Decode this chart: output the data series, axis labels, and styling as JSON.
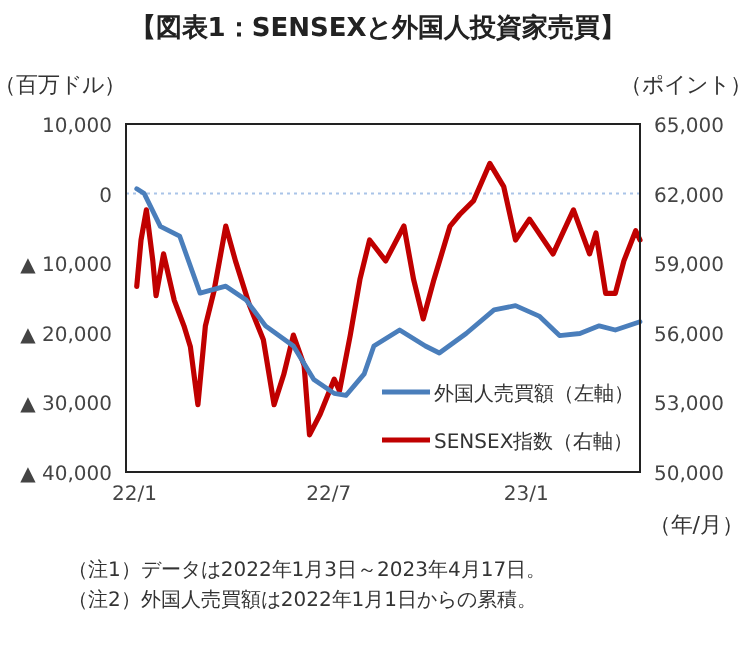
{
  "chart_data": {
    "type": "line",
    "title": "【図表1：SENSEXと外国人投資家売買】",
    "ylabel": "（百万ドル）",
    "y2label": "（ポイント）",
    "xlabel": "（年/月）",
    "annotations": [
      "（注1）データは2022年1月3日～2023年4月17日。",
      "（注2）外国人売買額は2022年1月1日からの累積。"
    ],
    "xlim": [
      "2021-12-24",
      "2023-04-17"
    ],
    "xticks": [
      {
        "value": "2022-01-01",
        "label": "22/1"
      },
      {
        "value": "2022-07-01",
        "label": "22/7"
      },
      {
        "value": "2023-01-01",
        "label": "23/1"
      }
    ],
    "ylim": [
      -40000,
      10000
    ],
    "yticks": [
      {
        "value": -40000,
        "label": "▲ 40,000"
      },
      {
        "value": -30000,
        "label": "▲ 30,000"
      },
      {
        "value": -20000,
        "label": "▲ 20,000"
      },
      {
        "value": -10000,
        "label": "▲ 10,000"
      },
      0,
      {
        "value": 10000,
        "label": "10,000"
      }
    ],
    "y2lim": [
      50000,
      65000
    ],
    "y2ticks": [
      {
        "value": 50000,
        "label": "50,000"
      },
      {
        "value": 53000,
        "label": "53,000"
      },
      {
        "value": 56000,
        "label": "56,000"
      },
      {
        "value": 59000,
        "label": "59,000"
      },
      {
        "value": 62000,
        "label": "62,000"
      },
      {
        "value": 65000,
        "label": "65,000"
      }
    ],
    "ref_lines": [
      {
        "axis": "y",
        "value": 0,
        "color": "#a9c4e8",
        "line_style": "dotted"
      }
    ],
    "legend": "bottom right",
    "series": [
      {
        "name": "外国人売買額（左軸）",
        "color": "#4a7ebb",
        "x": [
          "2022-01-03",
          "2022-01-10",
          "2022-01-25",
          "2022-02-12",
          "2022-03-03",
          "2022-03-27",
          "2022-04-15",
          "2022-05-03",
          "2022-05-29",
          "2022-06-17",
          "2022-07-06",
          "2022-07-17",
          "2022-08-03",
          "2022-08-12",
          "2022-09-05",
          "2022-09-29",
          "2022-10-12",
          "2022-11-06",
          "2022-12-02",
          "2022-12-22",
          "2023-01-13",
          "2023-02-01",
          "2023-02-20",
          "2023-03-10",
          "2023-03-25",
          "2023-04-17"
        ],
        "values": [
          700,
          0,
          -4700,
          -6100,
          -14300,
          -13300,
          -15300,
          -19000,
          -21900,
          -26700,
          -28700,
          -29000,
          -25900,
          -21900,
          -19600,
          -21900,
          -22900,
          -20100,
          -16700,
          -16100,
          -17600,
          -20400,
          -20100,
          -19000,
          -19600,
          -18400
        ]
      },
      {
        "name": "SENSEX指数（右軸）",
        "color": "#c00000",
        "axis": "y2",
        "x": [
          "2022-01-03",
          "2022-01-07",
          "2022-01-12",
          "2022-01-18",
          "2022-01-21",
          "2022-01-28",
          "2022-02-07",
          "2022-02-16",
          "2022-02-22",
          "2022-03-01",
          "2022-03-08",
          "2022-03-16",
          "2022-03-27",
          "2022-04-05",
          "2022-04-18",
          "2022-05-01",
          "2022-05-11",
          "2022-05-20",
          "2022-05-29",
          "2022-06-08",
          "2022-06-13",
          "2022-06-23",
          "2022-07-06",
          "2022-07-11",
          "2022-07-21",
          "2022-07-30",
          "2022-08-08",
          "2022-08-23",
          "2022-09-09",
          "2022-09-18",
          "2022-09-27",
          "2022-10-07",
          "2022-10-22",
          "2022-10-31",
          "2022-11-13",
          "2022-11-28",
          "2022-12-11",
          "2022-12-22",
          "2023-01-04",
          "2023-01-26",
          "2023-02-14",
          "2023-03-01",
          "2023-03-07",
          "2023-03-16",
          "2023-03-25",
          "2023-04-02",
          "2023-04-13",
          "2023-04-17"
        ],
        "values": [
          58000,
          60000,
          61300,
          59100,
          57600,
          59400,
          57400,
          56300,
          55400,
          52900,
          56300,
          57800,
          60600,
          59100,
          57200,
          55700,
          52900,
          54200,
          55900,
          54600,
          51600,
          52500,
          54000,
          53500,
          55900,
          58300,
          60000,
          59100,
          60600,
          58300,
          56600,
          58300,
          60600,
          61100,
          61700,
          63300,
          62300,
          60000,
          60900,
          59400,
          61300,
          59400,
          60300,
          57700,
          57700,
          59100,
          60400,
          60000
        ]
      }
    ]
  }
}
